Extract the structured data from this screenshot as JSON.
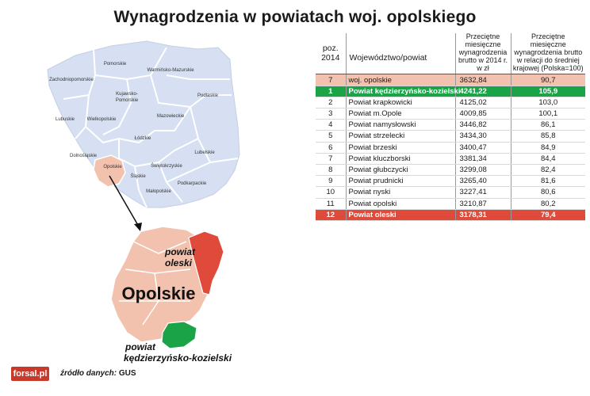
{
  "title": "Wynagrodzenia w powiatach woj. opolskiego",
  "map": {
    "voivodeships": [
      "Pomorskie",
      "Warmińsko-Mazurskie",
      "Zachodniopomorskie",
      "Kujawsko-Pomorskie",
      "Podlaskie",
      "Lubuskie",
      "Wielkopolskie",
      "Mazowieckie",
      "Łódzkie",
      "Dolnośląskie",
      "Opolskie",
      "Lubelskie",
      "Świętokrzyskie",
      "Śląskie",
      "Podkarpackie",
      "Małopolskie"
    ],
    "zoom_label": "Opolskie",
    "label_oleski_1": "powiat",
    "label_oleski_2": "oleski",
    "label_kk_1": "powiat",
    "label_kk_2": "kędzierzyńsko-kozielski",
    "colors": {
      "base": "#d6e0f2",
      "border": "#ffffff",
      "opolskie": "#f2c2ae",
      "oleski": "#e04a3a",
      "kk": "#1aa447"
    }
  },
  "table": {
    "headers": {
      "rank": "poz. 2014",
      "name": "Województwo/powiat",
      "salary": "Przeciętne miesięczne wynagrodzenia brutto w 2014 r. w zł",
      "relative": "Przeciętne miesięczne wynagrodzenia brutto w relacji do średniej krajowej (Polska=100)"
    }
  },
  "chart_data": {
    "type": "table",
    "columns": [
      "poz. 2014",
      "Województwo/powiat",
      "Przeciętne miesięczne wynagrodzenia brutto w 2014 r. w zł",
      "Przeciętne miesięczne wynagrodzenia brutto w relacji do średniej krajowej (Polska=100)"
    ],
    "rows": [
      {
        "rank": "7",
        "name": "woj. opolskie",
        "salary": "3632,84",
        "relative": "90,7",
        "style": "province"
      },
      {
        "rank": "1",
        "name": "Powiat kędzierzyńsko-kozielski",
        "salary": "4241,22",
        "relative": "105,9",
        "style": "best"
      },
      {
        "rank": "2",
        "name": "Powiat krapkowicki",
        "salary": "4125,02",
        "relative": "103,0",
        "style": ""
      },
      {
        "rank": "3",
        "name": "Powiat m.Opole",
        "salary": "4009,85",
        "relative": "100,1",
        "style": ""
      },
      {
        "rank": "4",
        "name": "Powiat namysłowski",
        "salary": "3446,82",
        "relative": "86,1",
        "style": ""
      },
      {
        "rank": "5",
        "name": "Powiat strzelecki",
        "salary": "3434,30",
        "relative": "85,8",
        "style": ""
      },
      {
        "rank": "6",
        "name": "Powiat brzeski",
        "salary": "3400,47",
        "relative": "84,9",
        "style": ""
      },
      {
        "rank": "7",
        "name": "Powiat kluczborski",
        "salary": "3381,34",
        "relative": "84,4",
        "style": ""
      },
      {
        "rank": "8",
        "name": "Powiat głubczycki",
        "salary": "3299,08",
        "relative": "82,4",
        "style": ""
      },
      {
        "rank": "9",
        "name": "Powiat prudnicki",
        "salary": "3265,40",
        "relative": "81,6",
        "style": ""
      },
      {
        "rank": "10",
        "name": "Powiat nyski",
        "salary": "3227,41",
        "relative": "80,6",
        "style": ""
      },
      {
        "rank": "11",
        "name": "Powiat opolski",
        "salary": "3210,87",
        "relative": "80,2",
        "style": ""
      },
      {
        "rank": "12",
        "name": "Powiat oleski",
        "salary": "3178,31",
        "relative": "79,4",
        "style": "worst"
      }
    ]
  },
  "footer": {
    "logo": "forsal.pl",
    "source_label": "źródło danych:",
    "source_value": "GUS"
  }
}
